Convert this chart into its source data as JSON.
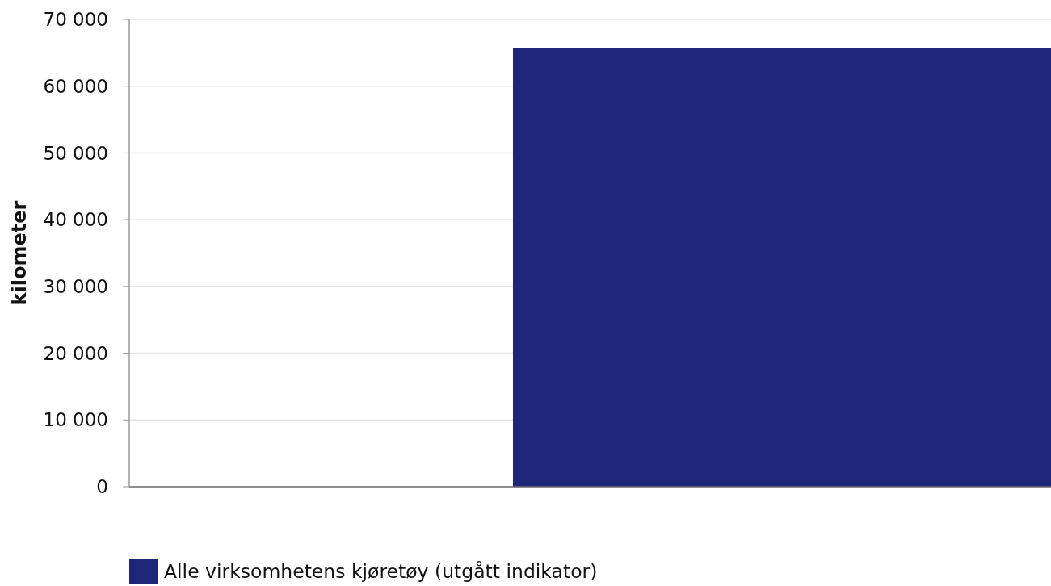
{
  "chart_data": {
    "type": "bar",
    "categories": [
      null
    ],
    "series": [
      {
        "name": "Alle virksomhetens kjøretøy (utgått indikator)",
        "color": "#1f2577",
        "values": [
          65700
        ]
      }
    ],
    "ylabel": "kilometer",
    "ylim": [
      0,
      70000
    ],
    "yticks": [
      0,
      {
        "value": 10000,
        "label": "10 000"
      },
      {
        "value": 20000,
        "label": "20 000"
      },
      {
        "value": 30000,
        "label": "30 000"
      },
      {
        "value": 40000,
        "label": "40 000"
      },
      {
        "value": 50000,
        "label": "50 000"
      },
      {
        "value": 60000,
        "label": "60 000"
      },
      {
        "value": 70000,
        "label": "70 000"
      }
    ],
    "grid": "y",
    "legend": "bottom left",
    "tick_labels": "y"
  }
}
